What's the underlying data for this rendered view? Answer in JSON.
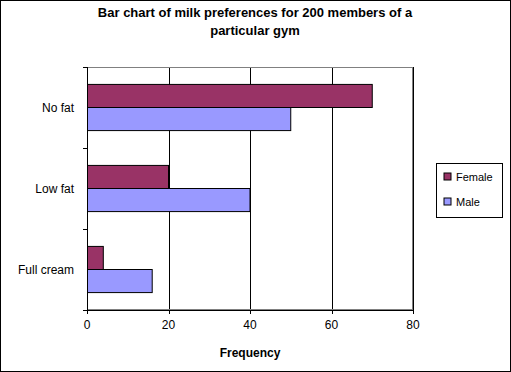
{
  "chart_data": {
    "type": "bar",
    "title": "Bar chart of milk preferences for 200 members of a particular gym",
    "xlabel": "Frequency",
    "orientation": "horizontal",
    "categories": [
      "No fat",
      "Low fat",
      "Full cream"
    ],
    "series": [
      {
        "name": "Female",
        "color": "#993366",
        "values": [
          70,
          20,
          4
        ]
      },
      {
        "name": "Male",
        "color": "#9999ff",
        "values": [
          50,
          40,
          16
        ]
      }
    ],
    "xlim": [
      0,
      80
    ],
    "xticks": [
      0,
      20,
      40,
      60,
      80
    ],
    "grid": true,
    "legend": "right"
  }
}
